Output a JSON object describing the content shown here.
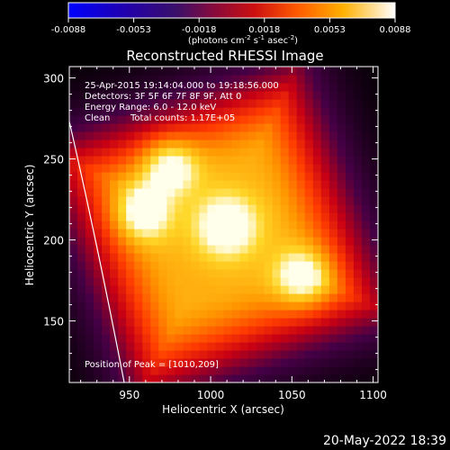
{
  "colorbar": {
    "ticks": [
      "-0.0088",
      "-0.0053",
      "-0.0018",
      "0.0018",
      "0.0053",
      "0.0088"
    ],
    "unit_prefix": "(photons cm",
    "unit_exp1": "-2",
    "unit_mid": " s",
    "unit_exp2": "-1",
    "unit_mid2": " asec",
    "unit_exp3": "-2",
    "unit_suffix": ")"
  },
  "chart_data": {
    "type": "heatmap",
    "title": "Reconstructed RHESSI Image",
    "xlabel": "Heliocentric X (arcsec)",
    "ylabel": "Heliocentric Y (arcsec)",
    "xlim": [
      913,
      1103
    ],
    "ylim": [
      112,
      307
    ],
    "xticks": [
      950,
      1000,
      1050,
      1100
    ],
    "yticks": [
      150,
      200,
      250,
      300
    ],
    "colorbar_range": [
      -0.0088,
      0.0088
    ],
    "annotations": [
      "25-Apr-2015 19:14:04.000 to 19:18:56.000",
      "Detectors: 3F 5F 6F 7F 8F 9F, Att 0",
      "Energy Range: 6.0 - 12.0 keV",
      "Clean",
      "Total counts: 1.17E+05"
    ],
    "peak_label": "Position of Peak = [1010,209]",
    "peak": [
      1010,
      209
    ],
    "sources": [
      {
        "x": 975,
        "y": 246
      },
      {
        "x": 958,
        "y": 217
      },
      {
        "x": 1010,
        "y": 209
      },
      {
        "x": 1057,
        "y": 177
      }
    ]
  },
  "footer": {
    "date": "20-May-2022 18:39"
  }
}
